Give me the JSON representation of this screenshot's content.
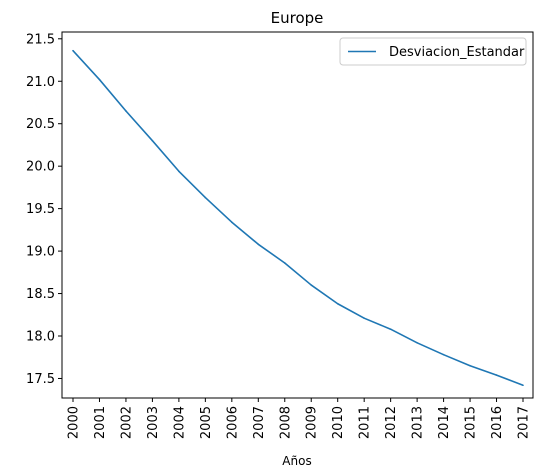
{
  "chart_data": {
    "type": "line",
    "title": "Europe",
    "xlabel": "Años",
    "ylabel": "",
    "categories": [
      "2000",
      "2001",
      "2002",
      "2003",
      "2004",
      "2005",
      "2006",
      "2007",
      "2008",
      "2009",
      "2010",
      "2011",
      "2012",
      "2013",
      "2014",
      "2015",
      "2016",
      "2017"
    ],
    "series": [
      {
        "name": "Desviacion_Estandar",
        "color": "#1f77b4",
        "values": [
          21.36,
          21.02,
          20.65,
          20.3,
          19.94,
          19.63,
          19.34,
          19.08,
          18.86,
          18.6,
          18.38,
          18.21,
          18.08,
          17.92,
          17.78,
          17.65,
          17.54,
          17.42
        ]
      }
    ],
    "ylim": [
      17.27,
      21.58
    ],
    "yticks": [
      "17.5",
      "18.0",
      "18.5",
      "19.0",
      "19.5",
      "20.0",
      "20.5",
      "21.0",
      "21.5"
    ],
    "grid": false,
    "legend_position": "upper right"
  }
}
